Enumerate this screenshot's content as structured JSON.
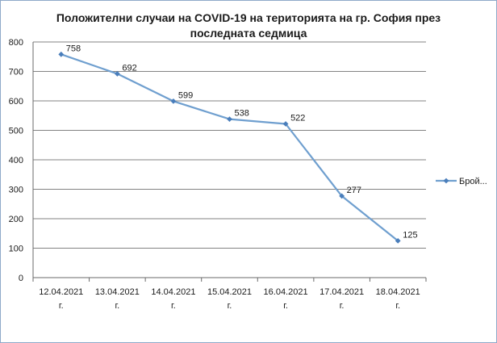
{
  "chart_data": {
    "type": "line",
    "title_lines": [
      "Положителни случаи на COVID-19 на територията на гр. София през",
      "последната седмица"
    ],
    "categories": [
      [
        "12.04.2021",
        "г."
      ],
      [
        "13.04.2021",
        "г."
      ],
      [
        "14.04.2021",
        "г."
      ],
      [
        "15.04.2021",
        "г."
      ],
      [
        "16.04.2021",
        "г."
      ],
      [
        "17.04.2021",
        "г."
      ],
      [
        "18.04.2021",
        "г."
      ]
    ],
    "series": [
      {
        "name": "Брой...",
        "values": [
          758,
          692,
          599,
          538,
          522,
          277,
          125
        ]
      }
    ],
    "data_labels": [
      "758",
      "692",
      "599",
      "538",
      "522",
      "277",
      "125"
    ],
    "ylim": [
      0,
      800
    ],
    "yticks": [
      "0",
      "100",
      "200",
      "300",
      "400",
      "500",
      "600",
      "700",
      "800"
    ],
    "grid": true,
    "legend_position": "right",
    "colors": {
      "line": "#6f9fcf",
      "marker": "#4a7ebb",
      "grid": "#5a5a5a",
      "frame": "#8fa9c9"
    }
  }
}
